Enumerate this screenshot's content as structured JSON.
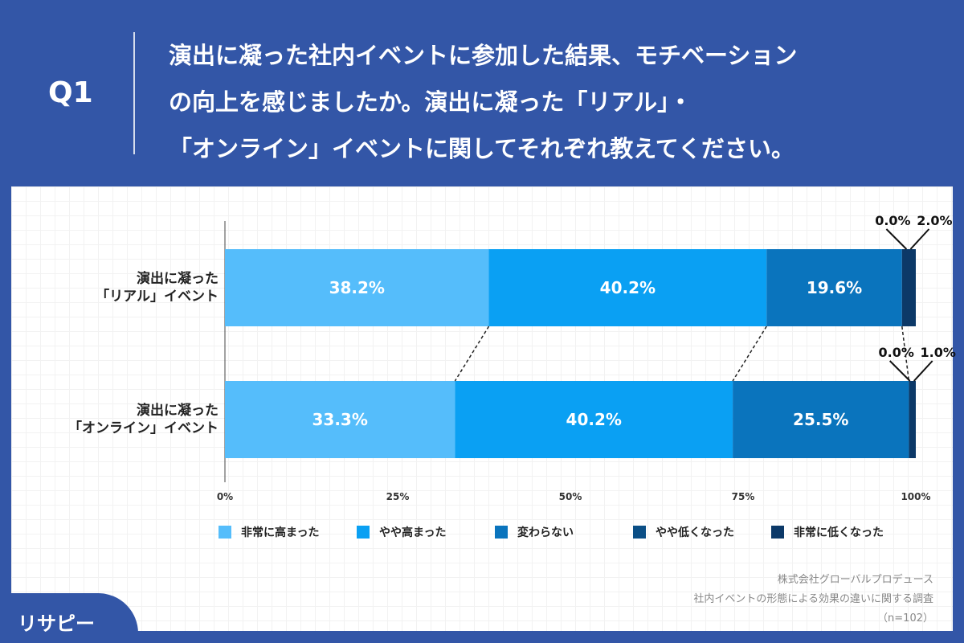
{
  "header": {
    "q": "Q1",
    "title": "演出に凝った社内イベントに参加した結果、モチベーション\nの向上を感じましたか。演出に凝った「リアル」・\n「オンライン」イベントに関してそれぞれ教えてください。"
  },
  "chart_data": {
    "type": "bar",
    "stacked": true,
    "orientation": "horizontal",
    "categories": [
      "演出に凝った\n「リアル」イベント",
      "演出に凝った\n「オンライン」イベント"
    ],
    "series": [
      {
        "name": "非常に高まった",
        "values": [
          38.2,
          33.3
        ],
        "color": "#55bdfb"
      },
      {
        "name": "やや高まった",
        "values": [
          40.2,
          40.2
        ],
        "color": "#0aa0f3"
      },
      {
        "name": "変わらない",
        "values": [
          19.6,
          25.5
        ],
        "color": "#0a74bd"
      },
      {
        "name": "やや低くなった",
        "values": [
          0.0,
          0.0
        ],
        "color": "#0b4f86"
      },
      {
        "name": "非常に低くなった",
        "values": [
          2.0,
          1.0
        ],
        "color": "#0c3968"
      }
    ],
    "xticks": [
      "0%",
      "25%",
      "50%",
      "75%",
      "100%"
    ],
    "xlim": [
      0,
      100
    ],
    "legend": "bottom"
  },
  "source": {
    "company": "株式会社グローバルプロデュース",
    "survey": "社内イベントの形態による効果の違いに関する調査",
    "n": "（n=102）"
  },
  "logo": "リサピー"
}
